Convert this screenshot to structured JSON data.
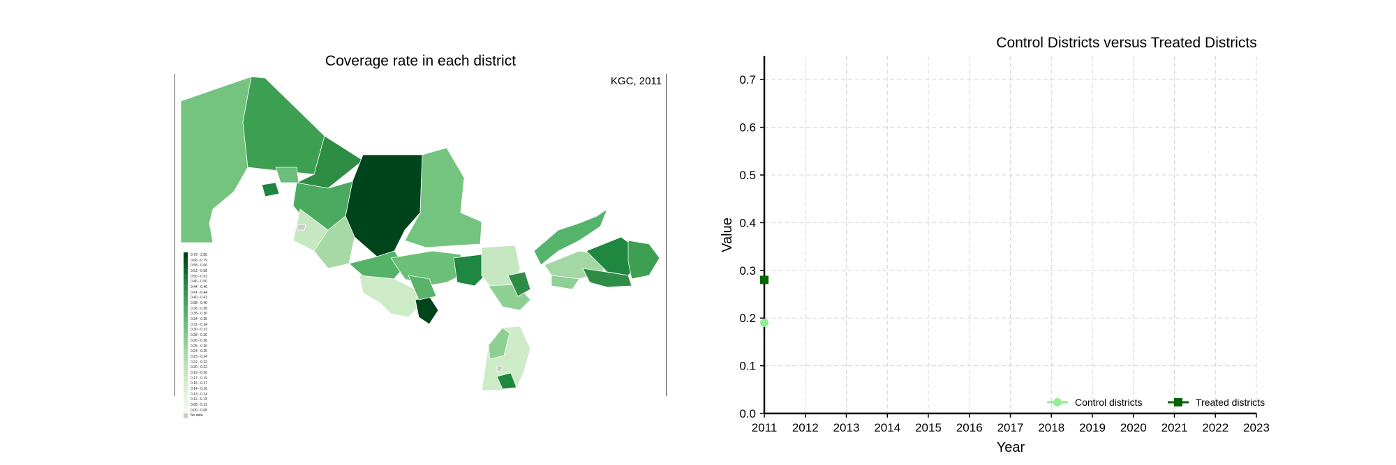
{
  "map": {
    "title": "Coverage rate in each district",
    "label": "KGC, 2011",
    "legend": [
      {
        "label": "0.79 - 2.50",
        "color": "#00441b"
      },
      {
        "label": "0.66 - 0.79",
        "color": "#01501f"
      },
      {
        "label": "0.58 - 0.66",
        "color": "#065c27"
      },
      {
        "label": "0.53 - 0.58",
        "color": "#0e6b30"
      },
      {
        "label": "0.50 - 0.53",
        "color": "#177a38"
      },
      {
        "label": "0.46 - 0.50",
        "color": "#1f8740"
      },
      {
        "label": "0.44 - 0.46",
        "color": "#289148"
      },
      {
        "label": "0.41 - 0.44",
        "color": "#319b4f"
      },
      {
        "label": "0.40 - 0.41",
        "color": "#39a156"
      },
      {
        "label": "0.38 - 0.40",
        "color": "#41a85d"
      },
      {
        "label": "0.36 - 0.38",
        "color": "#4bae64"
      },
      {
        "label": "0.35 - 0.36",
        "color": "#55b46c"
      },
      {
        "label": "0.34 - 0.35",
        "color": "#60ba74"
      },
      {
        "label": "0.31 - 0.34",
        "color": "#6bc07c"
      },
      {
        "label": "0.30 - 0.31",
        "color": "#77c584"
      },
      {
        "label": "0.28 - 0.30",
        "color": "#83ca8c"
      },
      {
        "label": "0.26 - 0.28",
        "color": "#8ecf94"
      },
      {
        "label": "0.25 - 0.26",
        "color": "#99d49c"
      },
      {
        "label": "0.24 - 0.25",
        "color": "#a3d8a4"
      },
      {
        "label": "0.23 - 0.24",
        "color": "#acdcab"
      },
      {
        "label": "0.22 - 0.23",
        "color": "#b5e0b2"
      },
      {
        "label": "0.20 - 0.22",
        "color": "#bde4b9"
      },
      {
        "label": "0.19 - 0.20",
        "color": "#c5e8c0"
      },
      {
        "label": "0.17 - 0.19",
        "color": "#cdebc7"
      },
      {
        "label": "0.16 - 0.17",
        "color": "#d4eece"
      },
      {
        "label": "0.14 - 0.16",
        "color": "#daf1d5"
      },
      {
        "label": "0.13 - 0.14",
        "color": "#e0f3db"
      },
      {
        "label": "0.11 - 0.13",
        "color": "#e6f5e1"
      },
      {
        "label": "0.08 - 0.11",
        "color": "#ecf8e7"
      },
      {
        "label": "0.00 - 0.08",
        "color": "#f3fbef"
      },
      {
        "label": "No data",
        "color": "#cccccc"
      }
    ]
  },
  "chart_data": {
    "type": "line",
    "title": "Control Districts versus Treated Districts",
    "xlabel": "Year",
    "ylabel": "Value",
    "x_ticks": [
      "2011",
      "2012",
      "2013",
      "2014",
      "2015",
      "2016",
      "2017",
      "2018",
      "2019",
      "2020",
      "2021",
      "2022",
      "2023"
    ],
    "y_ticks": [
      "0.0",
      "0.1",
      "0.2",
      "0.3",
      "0.4",
      "0.5",
      "0.6",
      "0.7"
    ],
    "xlim": [
      2011,
      2023
    ],
    "ylim": [
      0,
      0.75
    ],
    "grid": true,
    "legend_position": "bottom-right",
    "series": [
      {
        "name": "Control districts",
        "color": "#90ee90",
        "marker": "circle",
        "x": [
          2011
        ],
        "y": [
          0.19
        ]
      },
      {
        "name": "Treated districts",
        "color": "#006400",
        "marker": "square",
        "x": [
          2011
        ],
        "y": [
          0.28
        ]
      }
    ]
  }
}
